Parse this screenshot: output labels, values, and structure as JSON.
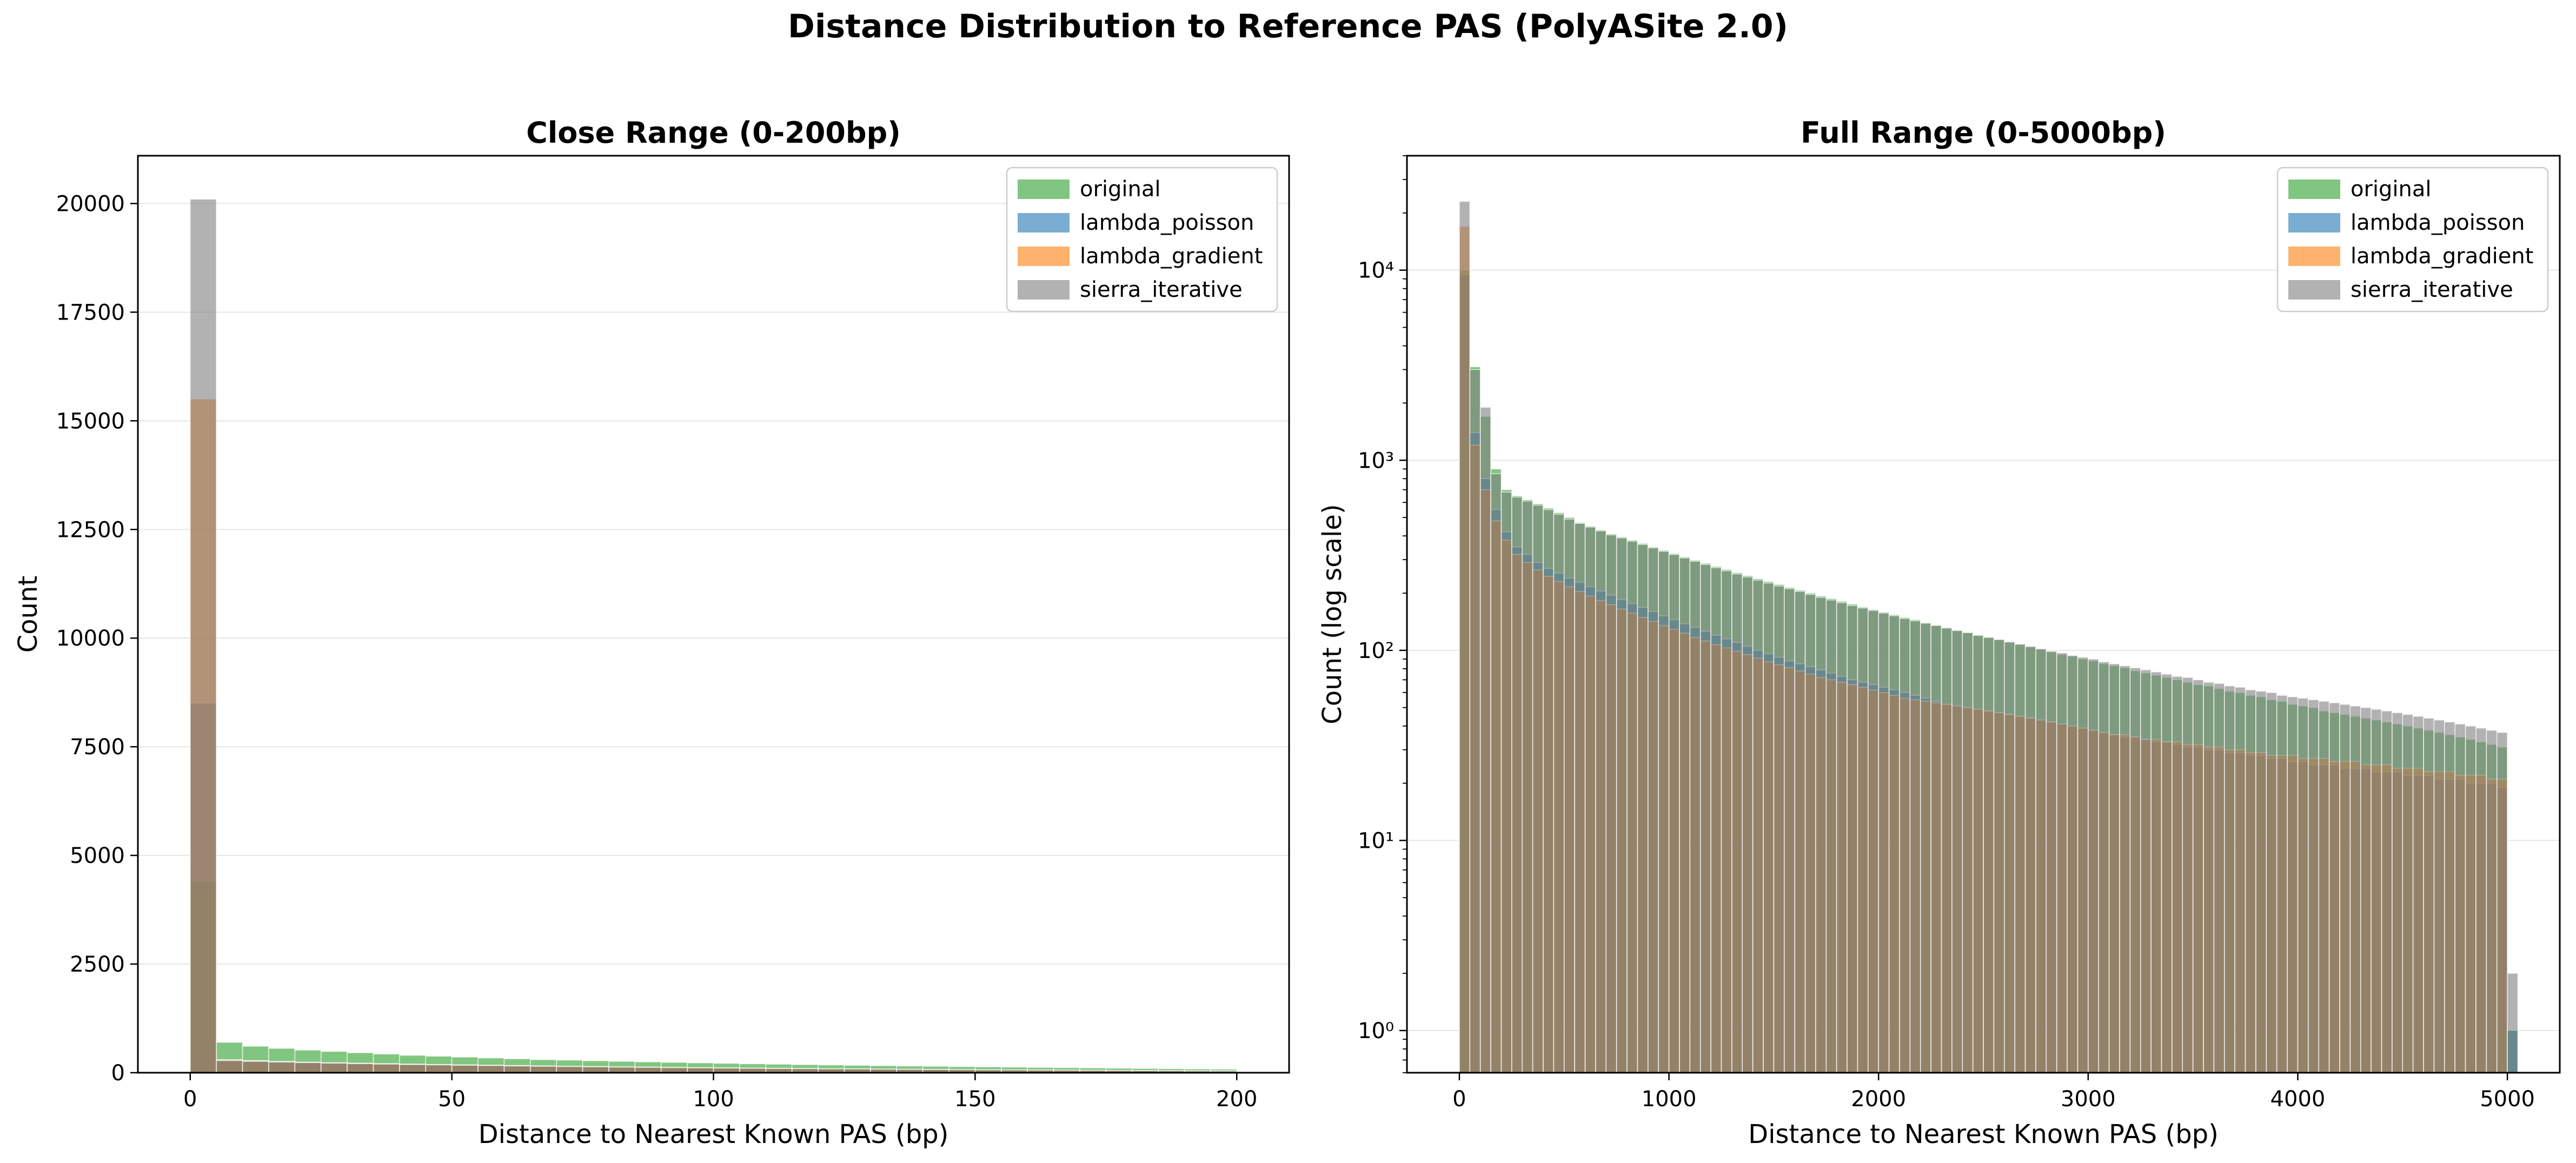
{
  "figure": {
    "title": "Distance Distribution to Reference PAS (PolyASite 2.0)"
  },
  "colors": {
    "original": "#2ca02c",
    "lambda_poisson": "#1f77b4",
    "lambda_gradient": "#ff7f0e",
    "sierra_iterative": "#7f7f7f"
  },
  "chart_data": [
    {
      "type": "bar",
      "title": "Close Range (0-200bp)",
      "xlabel": "Distance to Nearest Known PAS (bp)",
      "ylabel": "Count",
      "xlim": [
        -10,
        210
      ],
      "ylim": [
        0,
        21100
      ],
      "xticks": [
        0,
        50,
        100,
        150,
        200
      ],
      "yticks": [
        0,
        2500,
        5000,
        7500,
        10000,
        12500,
        15000,
        17500,
        20000
      ],
      "grid": "y",
      "legend": "top-right",
      "bin_width": 5,
      "bin_starts": [
        0,
        5,
        10,
        15,
        20,
        25,
        30,
        35,
        40,
        45,
        50,
        55,
        60,
        65,
        70,
        75,
        80,
        85,
        90,
        95,
        100,
        105,
        110,
        115,
        120,
        125,
        130,
        135,
        140,
        145,
        150,
        155,
        160,
        165,
        170,
        175,
        180,
        185,
        190,
        195
      ],
      "series": [
        {
          "name": "original",
          "values": [
            4400,
            700,
            610,
            560,
            520,
            490,
            460,
            430,
            400,
            380,
            360,
            340,
            320,
            300,
            290,
            275,
            262,
            250,
            238,
            226,
            215,
            205,
            196,
            187,
            178,
            170,
            162,
            155,
            148,
            141,
            134,
            128,
            122,
            116,
            110,
            104,
            98,
            92,
            86,
            80
          ]
        },
        {
          "name": "lambda_poisson",
          "values": [
            8500,
            300,
            280,
            260,
            245,
            230,
            220,
            210,
            200,
            190,
            182,
            174,
            166,
            158,
            150,
            143,
            136,
            130,
            124,
            118,
            113,
            108,
            103,
            98,
            93,
            89,
            85,
            81,
            77,
            73,
            69,
            66,
            63,
            60,
            57,
            54,
            51,
            48,
            45,
            42
          ]
        },
        {
          "name": "lambda_gradient",
          "values": [
            15500,
            290,
            270,
            252,
            238,
            224,
            212,
            202,
            192,
            183,
            175,
            167,
            159,
            151,
            144,
            137,
            131,
            125,
            119,
            113,
            108,
            103,
            98,
            94,
            90,
            86,
            82,
            78,
            74,
            70,
            67,
            64,
            61,
            58,
            55,
            52,
            49,
            46,
            43,
            40
          ]
        },
        {
          "name": "sierra_iterative",
          "values": [
            20100,
            280,
            260,
            245,
            232,
            220,
            208,
            198,
            188,
            180,
            172,
            164,
            156,
            149,
            142,
            135,
            129,
            123,
            117,
            112,
            107,
            102,
            97,
            93,
            89,
            85,
            81,
            77,
            73,
            70,
            66,
            63,
            60,
            57,
            54,
            51,
            48,
            45,
            42,
            39
          ]
        }
      ]
    },
    {
      "type": "bar",
      "title": "Full Range (0-5000bp)",
      "xlabel": "Distance to Nearest Known PAS (bp)",
      "ylabel": "Count (log scale)",
      "yscale": "log",
      "xlim": [
        -250,
        5250
      ],
      "ylim": [
        0.6,
        40000
      ],
      "xticks": [
        0,
        1000,
        2000,
        3000,
        4000,
        5000
      ],
      "yticks": [
        1,
        10,
        100,
        1000,
        10000
      ],
      "ytick_labels": [
        "10⁰",
        "10¹",
        "10²",
        "10³",
        "10⁴"
      ],
      "grid": "y",
      "legend": "top-right",
      "bin_width": 50,
      "bins": 101,
      "series": [
        {
          "name": "original",
          "values": [
            10000,
            3100,
            1700,
            900,
            700,
            650,
            620,
            590,
            560,
            530,
            500,
            470,
            450,
            430,
            410,
            395,
            380,
            365,
            350,
            336,
            323,
            310,
            298,
            287,
            276,
            266,
            256,
            247,
            238,
            230,
            222,
            214,
            207,
            200,
            193,
            187,
            181,
            175,
            169,
            164,
            159,
            154,
            149,
            145,
            140,
            136,
            132,
            128,
            124,
            120,
            117,
            114,
            110,
            107,
            104,
            101,
            98,
            95,
            93,
            90,
            88,
            85,
            83,
            81,
            78,
            76,
            74,
            72,
            70,
            68,
            66,
            65,
            63,
            61,
            60,
            58,
            57,
            55,
            54,
            52,
            51,
            50,
            48,
            47,
            46,
            45,
            44,
            43,
            42,
            41,
            40,
            39,
            38,
            37,
            36,
            35,
            34,
            33,
            32,
            31,
            1
          ]
        },
        {
          "name": "lambda_poisson",
          "values": [
            9500,
            1400,
            800,
            550,
            420,
            350,
            320,
            290,
            270,
            255,
            240,
            228,
            216,
            205,
            195,
            185,
            176,
            168,
            160,
            152,
            145,
            138,
            132,
            126,
            120,
            115,
            110,
            105,
            100,
            96,
            92,
            88,
            85,
            82,
            79,
            76,
            73,
            70,
            68,
            66,
            64,
            62,
            60,
            58,
            56,
            54,
            52,
            51,
            50,
            49,
            48,
            47,
            46,
            45,
            44,
            43,
            42,
            41,
            40,
            39,
            38,
            37,
            36,
            35,
            35,
            34,
            33,
            33,
            32,
            31,
            31,
            30,
            30,
            29,
            29,
            28,
            28,
            27,
            27,
            26,
            26,
            25,
            25,
            25,
            24,
            24,
            24,
            23,
            23,
            23,
            22,
            22,
            22,
            21,
            21,
            21,
            20,
            20,
            20,
            19,
            1
          ]
        },
        {
          "name": "lambda_gradient",
          "values": [
            17000,
            1200,
            700,
            480,
            380,
            320,
            290,
            265,
            245,
            230,
            216,
            204,
            193,
            183,
            174,
            165,
            157,
            149,
            142,
            135,
            129,
            123,
            117,
            112,
            107,
            103,
            99,
            95,
            91,
            87,
            84,
            81,
            78,
            75,
            72,
            70,
            68,
            66,
            64,
            62,
            60,
            58,
            56,
            55,
            54,
            53,
            52,
            51,
            50,
            49,
            48,
            47,
            46,
            45,
            44,
            43,
            42,
            41,
            40,
            39,
            38,
            37,
            36,
            36,
            35,
            34,
            34,
            33,
            33,
            32,
            32,
            31,
            31,
            30,
            30,
            29,
            29,
            28,
            28,
            28,
            27,
            27,
            27,
            26,
            26,
            26,
            25,
            25,
            25,
            24,
            24,
            24,
            23,
            23,
            23,
            22,
            22,
            22,
            21,
            21,
            0
          ]
        },
        {
          "name": "sierra_iterative",
          "values": [
            23000,
            3000,
            1900,
            850,
            680,
            640,
            610,
            580,
            550,
            520,
            490,
            465,
            445,
            425,
            405,
            390,
            375,
            360,
            346,
            332,
            319,
            306,
            294,
            283,
            272,
            262,
            252,
            243,
            234,
            226,
            218,
            211,
            204,
            197,
            190,
            184,
            178,
            172,
            167,
            162,
            157,
            152,
            147,
            143,
            139,
            135,
            131,
            127,
            124,
            120,
            117,
            114,
            111,
            108,
            105,
            102,
            99,
            97,
            94,
            92,
            90,
            87,
            85,
            83,
            81,
            79,
            77,
            75,
            73,
            72,
            70,
            68,
            67,
            65,
            64,
            62,
            61,
            60,
            58,
            57,
            56,
            55,
            54,
            53,
            52,
            51,
            50,
            49,
            48,
            47,
            46,
            45,
            44,
            43,
            42,
            41,
            40,
            39,
            38,
            37,
            2
          ]
        }
      ]
    }
  ]
}
